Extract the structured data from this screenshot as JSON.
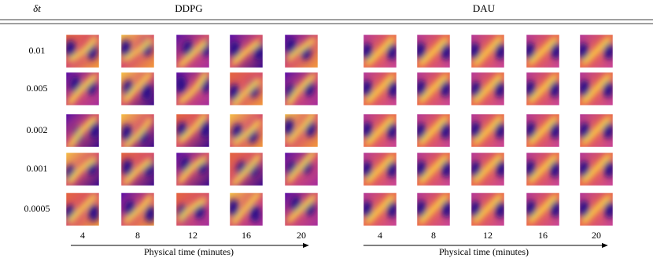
{
  "header": {
    "delta_label": "δt"
  },
  "rows": [
    "0.01",
    "0.005",
    "0.002",
    "0.001",
    "0.0005"
  ],
  "groups": [
    {
      "name": "DDPG",
      "columns": [
        "4",
        "8",
        "12",
        "16",
        "20"
      ],
      "xlabel": "Physical time (minutes)"
    },
    {
      "name": "DAU",
      "columns": [
        "4",
        "8",
        "12",
        "16",
        "20"
      ],
      "xlabel": "Physical time (minutes)"
    }
  ]
}
